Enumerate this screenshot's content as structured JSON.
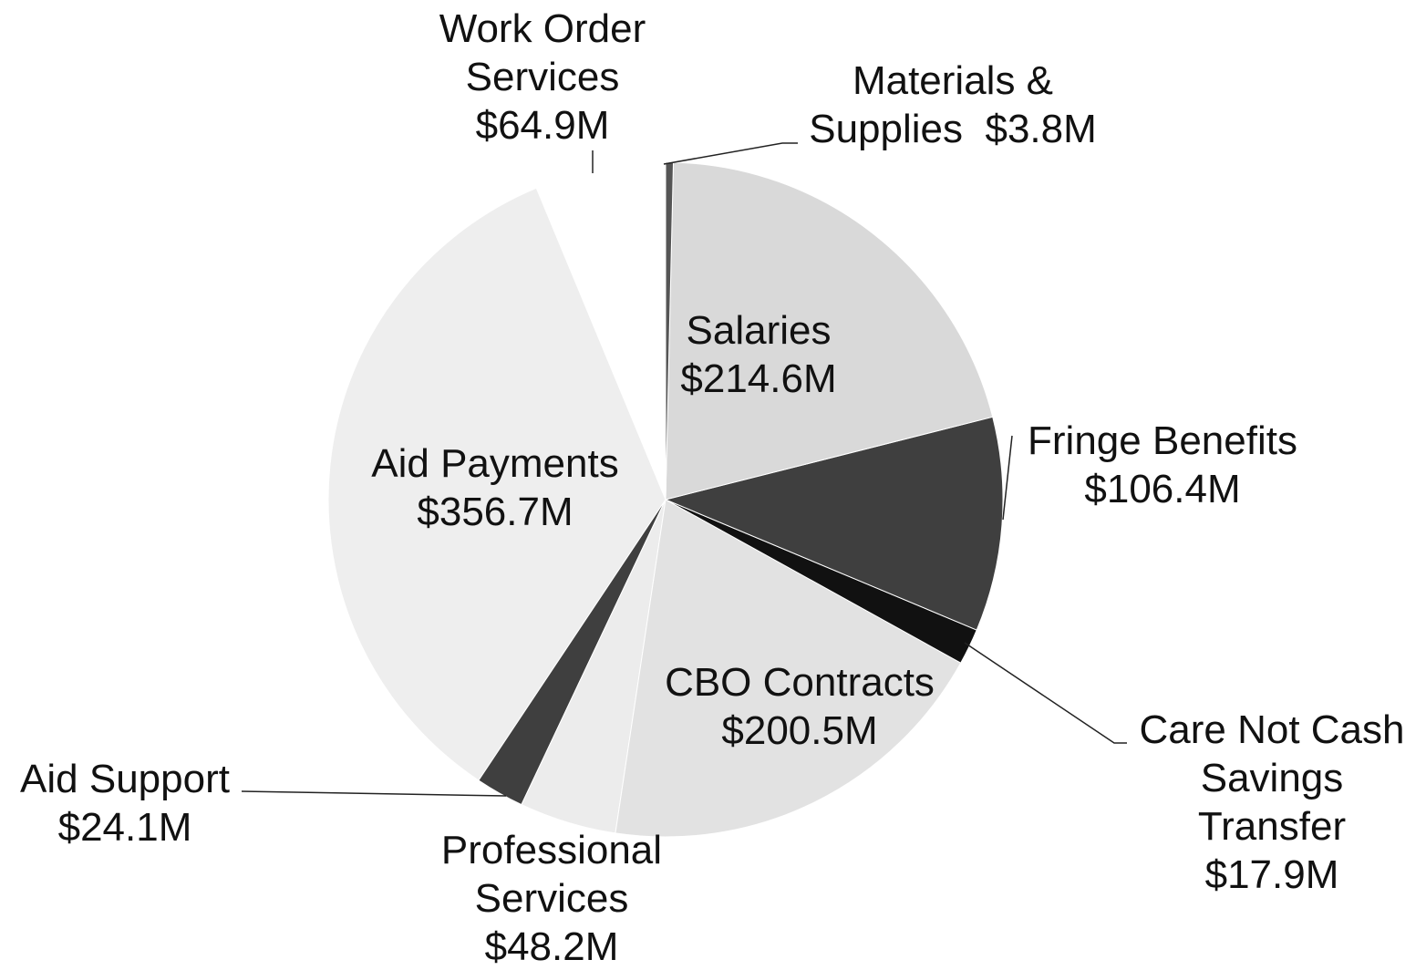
{
  "chart_data": {
    "type": "pie",
    "categories": [
      "Materials & Supplies",
      "Salaries",
      "Fringe Benefits",
      "Care Not Cash Savings Transfer",
      "CBO Contracts",
      "Professional Services",
      "Aid Support",
      "Aid Payments",
      "Work Order Services"
    ],
    "values": [
      3.8,
      214.6,
      106.4,
      17.9,
      200.5,
      48.2,
      24.1,
      356.7,
      64.9
    ],
    "value_labels": [
      "$3.8M",
      "$214.6M",
      "$106.4M",
      "$17.9M",
      "$200.5M",
      "$48.2M",
      "$24.1M",
      "$356.7M",
      "$64.9M"
    ],
    "colors": [
      "#555555",
      "#d9d9d9",
      "#3f3f3f",
      "#111111",
      "#e2e2e2",
      "#ececec",
      "#3f3f3f",
      "#eeeeee",
      "#ffffff"
    ]
  }
}
